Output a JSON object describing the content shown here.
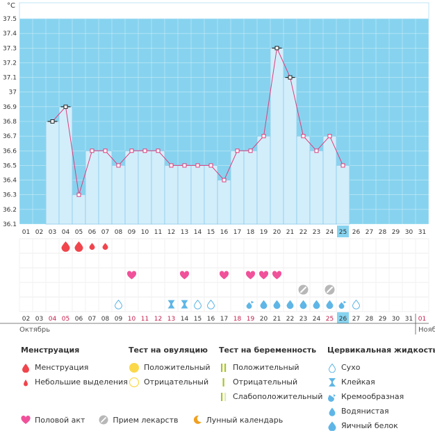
{
  "chart_data": {
    "type": "line",
    "title": "",
    "ylabel": "°C",
    "ylim": [
      36.1,
      37.6
    ],
    "y_ticks": [
      "37.5",
      "37.4",
      "37.3",
      "37.2",
      "37.1",
      "37",
      "36.9",
      "36.8",
      "36.7",
      "36.6",
      "36.5",
      "36.4",
      "36.3",
      "36.2",
      "36.1"
    ],
    "cycle_days": [
      "01",
      "02",
      "03",
      "04",
      "05",
      "06",
      "07",
      "08",
      "09",
      "10",
      "11",
      "12",
      "13",
      "14",
      "15",
      "16",
      "17",
      "18",
      "19",
      "20",
      "21",
      "22",
      "23",
      "24",
      "25",
      "26",
      "27",
      "28",
      "29",
      "30",
      "31"
    ],
    "dates": [
      "02",
      "03",
      "04",
      "05",
      "06",
      "07",
      "08",
      "09",
      "10",
      "11",
      "12",
      "13",
      "14",
      "15",
      "16",
      "17",
      "18",
      "19",
      "20",
      "21",
      "22",
      "23",
      "24",
      "25",
      "26",
      "27",
      "28",
      "29",
      "30",
      "31",
      "01"
    ],
    "date_colors": [
      "#333333",
      "#333333",
      "#c41c4a",
      "#c41c4a",
      "#333333",
      "#333333",
      "#333333",
      "#333333",
      "#c41c4a",
      "#c41c4a",
      "#c41c4a",
      "#c41c4a",
      "#333333",
      "#333333",
      "#333333",
      "#333333",
      "#c41c4a",
      "#c41c4a",
      "#333333",
      "#333333",
      "#333333",
      "#333333",
      "#333333",
      "#c41c4a",
      "#333333",
      "#333333",
      "#333333",
      "#333333",
      "#333333",
      "#333333",
      "#c41c4a"
    ],
    "current_day_index": 24,
    "temperatures": [
      null,
      null,
      36.8,
      36.9,
      36.3,
      36.6,
      36.6,
      36.5,
      36.6,
      36.6,
      36.6,
      36.5,
      36.5,
      36.5,
      36.5,
      36.4,
      36.6,
      36.6,
      36.7,
      37.3,
      37.1,
      36.7,
      36.6,
      36.7,
      36.5,
      null,
      null,
      null,
      null,
      null,
      null
    ],
    "coverline_days": [
      2,
      3,
      19,
      20
    ],
    "month_labels": [
      {
        "label": "Октябрь",
        "day_index": 0
      },
      {
        "label": "Нояб",
        "day_index": 30
      }
    ],
    "menstruation": {
      "4": "heavy",
      "5": "heavy",
      "6": "light",
      "7": "light"
    },
    "intercourse_days": [
      9,
      13,
      16,
      18,
      19,
      20
    ],
    "medication_days": [
      22,
      24
    ],
    "cervical_fluid": {
      "8": "dry",
      "12": "sticky",
      "13": "sticky",
      "14": "dry",
      "15": "dry",
      "18": "creamy",
      "19": "watery",
      "20": "watery",
      "21": "watery",
      "22": "watery",
      "23": "watery",
      "24": "watery",
      "25": "creamy",
      "26": "dry"
    }
  },
  "legend": {
    "menstruation": {
      "title": "Менструация",
      "items": [
        {
          "icon": "drop-heavy",
          "label": "Менструация"
        },
        {
          "icon": "drop-light",
          "label": "Небольшие выделения"
        }
      ]
    },
    "ovulation_test": {
      "title": "Тест на овуляцию",
      "items": [
        {
          "icon": "circle-filled",
          "label": "Положительный"
        },
        {
          "icon": "circle-empty",
          "label": "Отрицательный"
        }
      ]
    },
    "pregnancy_test": {
      "title": "Тест на беременность",
      "items": [
        {
          "icon": "bars-double",
          "label": "Положительный"
        },
        {
          "icon": "bar-single",
          "label": "Отрицательный"
        },
        {
          "icon": "bars-faint",
          "label": "Слабоположительный"
        }
      ]
    },
    "cervical": {
      "title": "Цервикальная жидкость",
      "items": [
        {
          "icon": "drop-outline",
          "label": "Сухо"
        },
        {
          "icon": "sticky",
          "label": "Клейкая"
        },
        {
          "icon": "creamy",
          "label": "Кремообразная"
        },
        {
          "icon": "watery",
          "label": "Водянистая"
        },
        {
          "icon": "egg-white",
          "label": "Яичный белок"
        }
      ]
    },
    "bottom": [
      {
        "icon": "heart",
        "label": "Половой акт"
      },
      {
        "icon": "pill",
        "label": "Прием лекарств"
      },
      {
        "icon": "moon",
        "label": "Лунный календарь"
      }
    ]
  },
  "colors": {
    "band": "#87d3ef",
    "bar_fill": "#d2eefb",
    "bar_stroke": "#8ccbea",
    "grid": "#ffffff",
    "line": "#e03c7a",
    "drop": "#f0454d",
    "heart": "#f0519a",
    "fluid": "#5fb6e6",
    "pill": "#b8b8b8",
    "yellow": "#fbd84a",
    "green": "#a8c428"
  }
}
